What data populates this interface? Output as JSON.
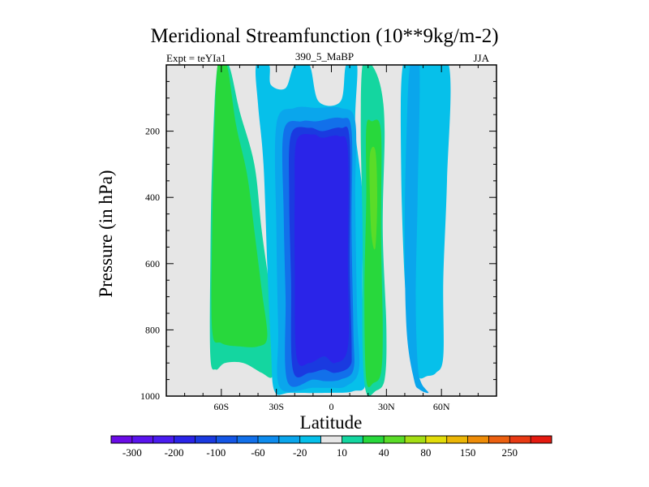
{
  "chart_data": {
    "type": "heatmap",
    "title": "Meridional Streamfunction (10**9kg/m-2)",
    "subtitle_left": "Expt = teYIa1",
    "subtitle_center": "390_5_MaBP",
    "subtitle_right": "JJA",
    "xlabel": "Latitude",
    "ylabel": "Pressure (in hPa)",
    "xlim": [
      -90,
      90
    ],
    "ylim": [
      1000,
      0
    ],
    "x_ticks": [
      {
        "value": -60,
        "label": "60S"
      },
      {
        "value": -30,
        "label": "30S"
      },
      {
        "value": 0,
        "label": "0"
      },
      {
        "value": 30,
        "label": "30N"
      },
      {
        "value": 60,
        "label": "60N"
      }
    ],
    "y_ticks": [
      {
        "value": 200,
        "label": "200"
      },
      {
        "value": 400,
        "label": "400"
      },
      {
        "value": 600,
        "label": "600"
      },
      {
        "value": 800,
        "label": "800"
      },
      {
        "value": 1000,
        "label": "1000"
      }
    ],
    "colorbar": {
      "colors": [
        "#6a0ce6",
        "#5a14ee",
        "#4a1cf0",
        "#2a24e8",
        "#1a3ae0",
        "#1456e6",
        "#1270ea",
        "#0e8cee",
        "#0aa6ec",
        "#06c0ea",
        "#e6e6e6",
        "#14d6a0",
        "#28d83c",
        "#5adc28",
        "#a4de14",
        "#e2dc0a",
        "#ecb606",
        "#ee8c08",
        "#ec6010",
        "#e83a14",
        "#e41a10"
      ],
      "labels": [
        "-300",
        "-200",
        "-100",
        "-60",
        "-20",
        "10",
        "40",
        "80",
        "150",
        "250"
      ]
    },
    "regions": [
      {
        "name": "sh-positive-cell",
        "color": "#14d6a0",
        "value": 10,
        "outline": [
          [
            -62,
            0
          ],
          [
            -56,
            0
          ],
          [
            -50,
            140
          ],
          [
            -42,
            300
          ],
          [
            -38,
            500
          ],
          [
            -33,
            700
          ],
          [
            -30,
            850
          ],
          [
            -32,
            940
          ],
          [
            -38,
            930
          ],
          [
            -48,
            900
          ],
          [
            -58,
            900
          ],
          [
            -63,
            920
          ],
          [
            -66,
            880
          ],
          [
            -66,
            600
          ],
          [
            -65,
            300
          ]
        ]
      },
      {
        "name": "sh-positive-core",
        "color": "#28d83c",
        "value": 40,
        "outline": [
          [
            -62,
            0
          ],
          [
            -57,
            0
          ],
          [
            -52,
            180
          ],
          [
            -46,
            330
          ],
          [
            -42,
            500
          ],
          [
            -38,
            680
          ],
          [
            -35,
            820
          ],
          [
            -40,
            850
          ],
          [
            -50,
            850
          ],
          [
            -60,
            840
          ],
          [
            -65,
            800
          ],
          [
            -65,
            500
          ],
          [
            -64,
            250
          ]
        ]
      },
      {
        "name": "equatorial-negative-cell-outer",
        "color": "#06c0ea",
        "value": -20,
        "outline": [
          [
            -41,
            0
          ],
          [
            -34,
            0
          ],
          [
            -33,
            60
          ],
          [
            -25,
            70
          ],
          [
            -20,
            0
          ],
          [
            -12,
            0
          ],
          [
            -7,
            110
          ],
          [
            5,
            110
          ],
          [
            8,
            0
          ],
          [
            14,
            0
          ],
          [
            13,
            190
          ],
          [
            17,
            400
          ],
          [
            17,
            700
          ],
          [
            19,
            950
          ],
          [
            12,
            985
          ],
          [
            0,
            990
          ],
          [
            -22,
            990
          ],
          [
            -31,
            985
          ],
          [
            -33,
            850
          ],
          [
            -35,
            600
          ],
          [
            -37,
            300
          ],
          [
            -40,
            120
          ]
        ]
      },
      {
        "name": "equatorial-negative-cell-level2",
        "color": "#0aa6ec",
        "value": -60,
        "outline": [
          [
            -30,
            180
          ],
          [
            -20,
            130
          ],
          [
            -8,
            130
          ],
          [
            5,
            130
          ],
          [
            13,
            170
          ],
          [
            13,
            400
          ],
          [
            14,
            750
          ],
          [
            15,
            920
          ],
          [
            8,
            970
          ],
          [
            0,
            975
          ],
          [
            -10,
            975
          ],
          [
            -28,
            975
          ],
          [
            -29,
            800
          ],
          [
            -30,
            500
          ]
        ]
      },
      {
        "name": "equatorial-negative-cell-level3",
        "color": "#1270ea",
        "value": -100,
        "outline": [
          [
            -26,
            200
          ],
          [
            -16,
            170
          ],
          [
            -8,
            170
          ],
          [
            5,
            160
          ],
          [
            11,
            200
          ],
          [
            11,
            500
          ],
          [
            12,
            800
          ],
          [
            12,
            920
          ],
          [
            5,
            950
          ],
          [
            -3,
            955
          ],
          [
            -10,
            950
          ],
          [
            -24,
            955
          ],
          [
            -25,
            700
          ],
          [
            -26,
            450
          ]
        ]
      },
      {
        "name": "equatorial-negative-cell-level4",
        "color": "#1a3ae0",
        "value": -200,
        "outline": [
          [
            -22,
            210
          ],
          [
            -12,
            190
          ],
          [
            -5,
            200
          ],
          [
            5,
            190
          ],
          [
            10,
            230
          ],
          [
            10,
            600
          ],
          [
            11,
            850
          ],
          [
            10,
            910
          ],
          [
            2,
            930
          ],
          [
            -4,
            920
          ],
          [
            -12,
            930
          ],
          [
            -21,
            920
          ],
          [
            -22,
            650
          ],
          [
            -23,
            400
          ]
        ]
      },
      {
        "name": "equatorial-negative-cell-core",
        "color": "#2a24e8",
        "value": -300,
        "outline": [
          [
            -19,
            230
          ],
          [
            -10,
            210
          ],
          [
            -5,
            220
          ],
          [
            4,
            215
          ],
          [
            9,
            260
          ],
          [
            9,
            600
          ],
          [
            9,
            850
          ],
          [
            2,
            900
          ],
          [
            -4,
            880
          ],
          [
            -12,
            900
          ],
          [
            -19,
            880
          ],
          [
            -20,
            600
          ],
          [
            -20,
            400
          ]
        ]
      },
      {
        "name": "nh-positive-cell",
        "color": "#14d6a0",
        "value": 10,
        "outline": [
          [
            17,
            0
          ],
          [
            22,
            0
          ],
          [
            27,
            70
          ],
          [
            29,
            200
          ],
          [
            28,
            500
          ],
          [
            30,
            800
          ],
          [
            29,
            950
          ],
          [
            24,
            985
          ],
          [
            19,
            990
          ],
          [
            17,
            850
          ],
          [
            17,
            500
          ],
          [
            16,
            200
          ]
        ]
      },
      {
        "name": "nh-positive-core",
        "color": "#28d83c",
        "value": 40,
        "outline": [
          [
            19,
            190
          ],
          [
            22,
            170
          ],
          [
            27,
            200
          ],
          [
            27,
            500
          ],
          [
            28,
            800
          ],
          [
            27,
            930
          ],
          [
            23,
            960
          ],
          [
            19,
            950
          ],
          [
            18,
            700
          ],
          [
            19,
            400
          ]
        ]
      },
      {
        "name": "nh-positive-max",
        "color": "#5adc28",
        "value": 80,
        "outline": [
          [
            21,
            270
          ],
          [
            24,
            260
          ],
          [
            25,
            400
          ],
          [
            24,
            550
          ],
          [
            22,
            520
          ],
          [
            21,
            400
          ]
        ]
      },
      {
        "name": "nh-negative-cell",
        "color": "#06c0ea",
        "value": -20,
        "outline": [
          [
            39,
            0
          ],
          [
            48,
            0
          ],
          [
            64,
            0
          ],
          [
            63,
            350
          ],
          [
            61,
            650
          ],
          [
            61,
            880
          ],
          [
            57,
            930
          ],
          [
            52,
            940
          ],
          [
            48,
            945
          ],
          [
            44,
            905
          ],
          [
            40,
            650
          ],
          [
            38,
            300
          ]
        ]
      },
      {
        "name": "nh-negative-core",
        "color": "#0aa6ec",
        "value": -60,
        "outline": [
          [
            43,
            0
          ],
          [
            48,
            0
          ],
          [
            47,
            400
          ],
          [
            46,
            700
          ],
          [
            47,
            900
          ],
          [
            49,
            960
          ],
          [
            53,
            990
          ],
          [
            48,
            980
          ],
          [
            45,
            950
          ],
          [
            41,
            800
          ],
          [
            40,
            500
          ],
          [
            41,
            200
          ]
        ]
      }
    ]
  }
}
